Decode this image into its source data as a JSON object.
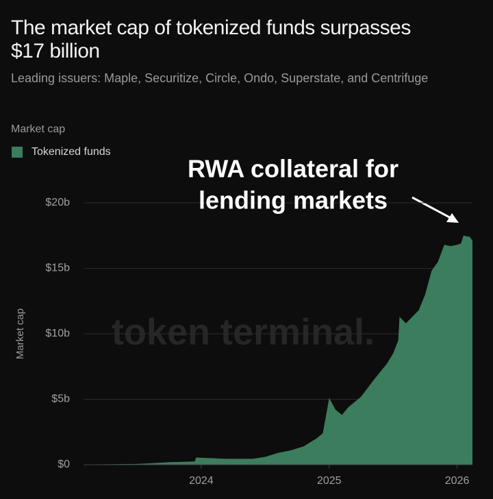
{
  "chart_data": {
    "type": "area",
    "title": "The market cap of tokenized funds surpasses $17 billion",
    "subtitle": "Leading issuers: Maple, Securitize, Circle, Ondo, Superstate, and Centrifuge",
    "legend_title": "Market cap",
    "y_label": "Market cap",
    "watermark": "token terminal.",
    "annotation": [
      "RWA collateral for",
      "lending markets"
    ],
    "x": [
      2023.1,
      2023.3,
      2023.5,
      2023.58,
      2023.77,
      2023.95,
      2023.96,
      2024.2,
      2024.4,
      2024.5,
      2024.6,
      2024.7,
      2024.8,
      2024.9,
      2024.95,
      2024.98,
      2025.0,
      2025.05,
      2025.1,
      2025.15,
      2025.25,
      2025.35,
      2025.45,
      2025.5,
      2025.54,
      2025.55,
      2025.6,
      2025.65,
      2025.7,
      2025.75,
      2025.8,
      2025.85,
      2025.9,
      2025.95,
      2026.0,
      2026.03,
      2026.05,
      2026.1,
      2026.12
    ],
    "series": [
      {
        "name": "Tokenized funds",
        "color": "#3b7d5d",
        "values": [
          0.02,
          0.04,
          0.06,
          0.1,
          0.2,
          0.25,
          0.55,
          0.45,
          0.45,
          0.6,
          0.9,
          1.1,
          1.4,
          2.0,
          2.4,
          4.0,
          5.1,
          4.2,
          3.8,
          4.4,
          5.2,
          6.5,
          7.7,
          8.5,
          9.5,
          11.3,
          10.8,
          11.3,
          11.8,
          13.0,
          14.8,
          15.5,
          16.8,
          16.7,
          16.8,
          16.9,
          17.5,
          17.4,
          17.1
        ]
      }
    ],
    "xlim": [
      2023.08,
      2026.12
    ],
    "xticks": [
      2024,
      2025,
      2026
    ],
    "ylim": [
      0,
      20
    ],
    "yticks": [
      {
        "value": 0,
        "label": "$0"
      },
      {
        "value": 5,
        "label": "$5b"
      },
      {
        "value": 10,
        "label": "$10b"
      },
      {
        "value": 15,
        "label": "$15b"
      },
      {
        "value": 20,
        "label": "$20b"
      }
    ],
    "grid": true
  }
}
